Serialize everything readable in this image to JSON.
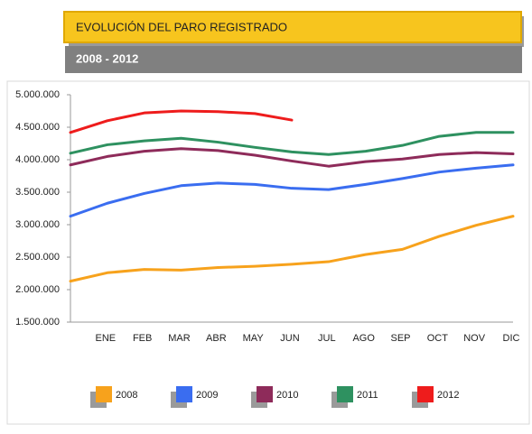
{
  "chart_data": {
    "type": "line",
    "title": "EVOLUCIÓN DEL PARO REGISTRADO",
    "subtitle": "2008 - 2012",
    "categories": [
      null,
      "ENE",
      "FEB",
      "MAR",
      "ABR",
      "MAY",
      "JUN",
      "JUL",
      "AGO",
      "SEP",
      "OCT",
      "NOV",
      "DIC"
    ],
    "series": [
      {
        "name": "2008",
        "color": "#f7a21c",
        "values": [
          2130000,
          2260000,
          2310000,
          2300000,
          2340000,
          2360000,
          2390000,
          2430000,
          2540000,
          2620000,
          2820000,
          2990000,
          3130000
        ]
      },
      {
        "name": "2009",
        "color": "#3a6df0",
        "values": [
          3130000,
          3330000,
          3480000,
          3600000,
          3640000,
          3620000,
          3560000,
          3540000,
          3620000,
          3710000,
          3810000,
          3870000,
          3920000
        ]
      },
      {
        "name": "2010",
        "color": "#8e2b5a",
        "values": [
          3920000,
          4050000,
          4130000,
          4170000,
          4140000,
          4070000,
          3980000,
          3900000,
          3970000,
          4010000,
          4080000,
          4110000,
          4090000
        ]
      },
      {
        "name": "2011",
        "color": "#2e9160",
        "values": [
          4100000,
          4230000,
          4290000,
          4330000,
          4270000,
          4190000,
          4120000,
          4080000,
          4130000,
          4220000,
          4360000,
          4420000,
          4420000
        ]
      },
      {
        "name": "2012",
        "color": "#ee1c1c",
        "values": [
          4420000,
          4600000,
          4720000,
          4750000,
          4740000,
          4710000,
          4610000,
          null,
          null,
          null,
          null,
          null,
          null
        ]
      }
    ],
    "ylim": [
      1500000,
      5000000
    ],
    "yticks": [
      {
        "value": 1500000,
        "label": "1.500.000"
      },
      {
        "value": 2000000,
        "label": "2.000.000"
      },
      {
        "value": 2500000,
        "label": "2.500.000"
      },
      {
        "value": 3000000,
        "label": "3.000.000"
      },
      {
        "value": 3500000,
        "label": "3.500.000"
      },
      {
        "value": 4000000,
        "label": "4.000.000"
      },
      {
        "value": 4500000,
        "label": "4.500.000"
      },
      {
        "value": 5000000,
        "label": "5.000.000"
      }
    ],
    "grid": false
  }
}
